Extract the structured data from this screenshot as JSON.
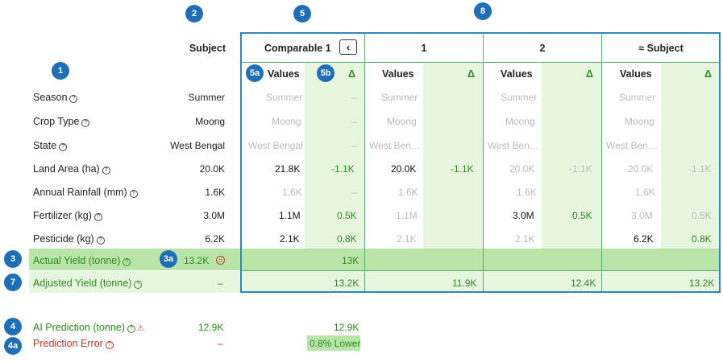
{
  "badges": {
    "b1": "1",
    "b2": "2",
    "b3": "3",
    "b3a": "3a",
    "b4": "4",
    "b4a": "4a",
    "b5": "5",
    "b5a": "5a",
    "b5b": "5b",
    "b7": "7",
    "b8": "8"
  },
  "subject_header": "Subject",
  "columns": {
    "comp1": "Comparable 1",
    "c1": "1",
    "c2": "2",
    "approx": "≈ Subject",
    "values": "Values",
    "delta": "Δ"
  },
  "rows": [
    {
      "label": "Season",
      "subject": "Summer",
      "comp1": [
        "Summer",
        "–"
      ],
      "c1": [
        "Summer",
        ""
      ],
      "c2": [
        "Summer",
        ""
      ],
      "ap": [
        "Summer",
        ""
      ]
    },
    {
      "label": "Crop Type",
      "subject": "Moong",
      "comp1": [
        "Moong",
        "–"
      ],
      "c1": [
        "Moong",
        ""
      ],
      "c2": [
        "Moong",
        ""
      ],
      "ap": [
        "Moong",
        ""
      ]
    },
    {
      "label": "State",
      "subject": "West Bengal",
      "comp1": [
        "West Bengal",
        "–"
      ],
      "c1": [
        "West Ben…",
        ""
      ],
      "c2": [
        "West Ben…",
        ""
      ],
      "ap": [
        "West Ben…",
        ""
      ]
    },
    {
      "label": "Land Area (ha)",
      "subject": "20.0K",
      "comp1": [
        "21.8K",
        "-1.1K"
      ],
      "c1": [
        "20.0K",
        "-1.1K"
      ],
      "c2": [
        "20.0K",
        "-1.1K"
      ],
      "ap": [
        "20.0K",
        "-1.1K"
      ]
    },
    {
      "label": "Annual Rainfall (mm)",
      "subject": "1.6K",
      "comp1": [
        "1.6K",
        "–"
      ],
      "c1": [
        "1.6K",
        ""
      ],
      "c2": [
        "1.6K",
        ""
      ],
      "ap": [
        "1.6K",
        ""
      ]
    },
    {
      "label": "Fertilizer (kg)",
      "subject": "3.0M",
      "comp1": [
        "1.1M",
        "0.5K"
      ],
      "c1": [
        "1.1M",
        ""
      ],
      "c2": [
        "3.0M",
        "0.5K"
      ],
      "ap": [
        "3.0M",
        "0.5K"
      ]
    },
    {
      "label": "Pesticide (kg)",
      "subject": "6.2K",
      "comp1": [
        "2.1K",
        "0.8K"
      ],
      "c1": [
        "2.1K",
        ""
      ],
      "c2": [
        "2.1K",
        ""
      ],
      "ap": [
        "6.2K",
        "0.8K"
      ]
    }
  ],
  "actual": {
    "label": "Actual Yield (tonne)",
    "subject": "13.2K",
    "comp1": "13K"
  },
  "adjusted": {
    "label": "Adjusted Yield (tonne)",
    "subject": "–",
    "comp1": "13.2K",
    "c1": "11.9K",
    "c2": "12.4K",
    "ap": "13.2K"
  },
  "ai": {
    "label": "AI Prediction (tonne)",
    "subject": "12.9K",
    "comp1": "12.9K"
  },
  "error": {
    "label": "Prediction Error",
    "subject": "–",
    "comp1": "0.8% Lower"
  },
  "colors": {
    "badge": "#1f6fb8",
    "green_bg": "#e6f6df",
    "actual_bg": "#b9e6a8",
    "border": "#5ba76f",
    "green_text": "#2f8a1e",
    "red_text": "#c0392b"
  }
}
